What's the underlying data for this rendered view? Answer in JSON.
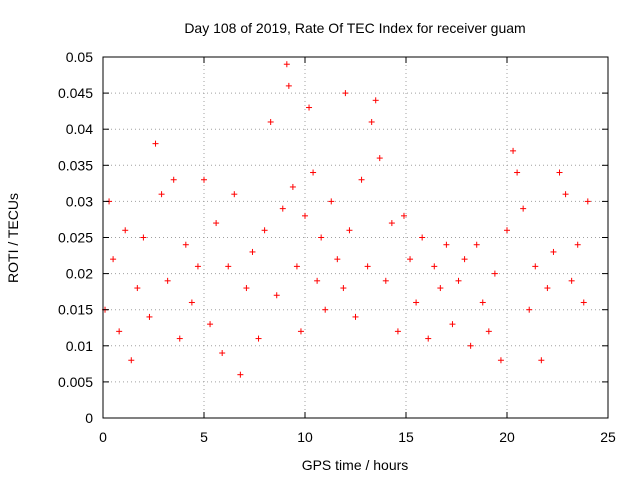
{
  "chart_data": {
    "type": "scatter",
    "title": "Day 108 of 2019, Rate Of TEC Index for receiver guam",
    "xlabel": "GPS time / hours",
    "ylabel": "ROTI / TECUs",
    "xlim": [
      0,
      25
    ],
    "ylim": [
      0,
      0.05
    ],
    "xticks": [
      "0",
      "5",
      "10",
      "15",
      "20",
      "25"
    ],
    "yticks": [
      "0",
      "0.005",
      "0.01",
      "0.015",
      "0.02",
      "0.025",
      "0.03",
      "0.035",
      "0.04",
      "0.045",
      "0.05"
    ],
    "grid": true,
    "marker": "+",
    "color": "#ff0000",
    "series": [
      {
        "name": "ROTI",
        "x": [
          0.1,
          0.3,
          0.5,
          0.8,
          1.1,
          1.4,
          1.7,
          2.0,
          2.3,
          2.6,
          2.9,
          3.2,
          3.5,
          3.8,
          4.1,
          4.4,
          4.7,
          5.0,
          5.3,
          5.6,
          5.9,
          6.2,
          6.5,
          6.8,
          7.1,
          7.4,
          7.7,
          8.0,
          8.3,
          8.6,
          8.9,
          9.1,
          9.2,
          9.4,
          9.6,
          9.8,
          10.0,
          10.2,
          10.4,
          10.6,
          10.8,
          11.0,
          11.3,
          11.6,
          11.9,
          12.0,
          12.2,
          12.5,
          12.8,
          13.1,
          13.3,
          13.5,
          13.7,
          14.0,
          14.3,
          14.6,
          14.9,
          15.2,
          15.5,
          15.8,
          16.1,
          16.4,
          16.7,
          17.0,
          17.3,
          17.6,
          17.9,
          18.2,
          18.5,
          18.8,
          19.1,
          19.4,
          19.7,
          20.0,
          20.3,
          20.5,
          20.8,
          21.1,
          21.4,
          21.7,
          22.0,
          22.3,
          22.6,
          22.9,
          23.2,
          23.5,
          23.8,
          24.0
        ],
        "y": [
          0.015,
          0.03,
          0.022,
          0.012,
          0.026,
          0.008,
          0.018,
          0.025,
          0.014,
          0.038,
          0.031,
          0.019,
          0.033,
          0.011,
          0.024,
          0.016,
          0.021,
          0.033,
          0.013,
          0.027,
          0.009,
          0.021,
          0.031,
          0.006,
          0.018,
          0.023,
          0.011,
          0.026,
          0.041,
          0.017,
          0.029,
          0.049,
          0.046,
          0.032,
          0.021,
          0.012,
          0.028,
          0.043,
          0.034,
          0.019,
          0.025,
          0.015,
          0.03,
          0.022,
          0.018,
          0.045,
          0.026,
          0.014,
          0.033,
          0.021,
          0.041,
          0.044,
          0.036,
          0.019,
          0.027,
          0.012,
          0.028,
          0.022,
          0.016,
          0.025,
          0.011,
          0.021,
          0.018,
          0.024,
          0.013,
          0.019,
          0.022,
          0.01,
          0.024,
          0.016,
          0.012,
          0.02,
          0.008,
          0.026,
          0.037,
          0.034,
          0.029,
          0.015,
          0.021,
          0.008,
          0.018,
          0.023,
          0.034,
          0.031,
          0.019,
          0.024,
          0.016,
          0.03
        ]
      }
    ]
  }
}
